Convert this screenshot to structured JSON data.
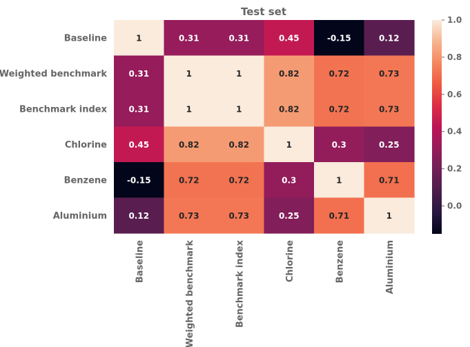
{
  "chart_data": {
    "type": "heatmap",
    "title": "Test set",
    "rows": [
      "Baseline",
      "Weighted benchmark",
      "Benchmark index",
      "Chlorine",
      "Benzene",
      "Aluminium"
    ],
    "columns": [
      "Baseline",
      "Weighted benchmark",
      "Benchmark index",
      "Chlorine",
      "Benzene",
      "Aluminium"
    ],
    "values": [
      [
        1,
        0.31,
        0.31,
        0.45,
        -0.15,
        0.12
      ],
      [
        0.31,
        1,
        1,
        0.82,
        0.72,
        0.73
      ],
      [
        0.31,
        1,
        1,
        0.82,
        0.72,
        0.73
      ],
      [
        0.45,
        0.82,
        0.82,
        1,
        0.3,
        0.25
      ],
      [
        -0.15,
        0.72,
        0.72,
        0.3,
        1,
        0.71
      ],
      [
        0.12,
        0.73,
        0.73,
        0.25,
        0.71,
        1
      ]
    ],
    "annotations": [
      [
        "1",
        "0.31",
        "0.31",
        "0.45",
        "-0.15",
        "0.12"
      ],
      [
        "0.31",
        "1",
        "1",
        "0.82",
        "0.72",
        "0.73"
      ],
      [
        "0.31",
        "1",
        "1",
        "0.82",
        "0.72",
        "0.73"
      ],
      [
        "0.45",
        "0.82",
        "0.82",
        "1",
        "0.3",
        "0.25"
      ],
      [
        "-0.15",
        "0.72",
        "0.72",
        "0.3",
        "1",
        "0.71"
      ],
      [
        "0.12",
        "0.73",
        "0.73",
        "0.25",
        "0.71",
        "1"
      ]
    ],
    "colormap": "rocket",
    "vmin": -0.15,
    "vmax": 1.0,
    "colorbar": {
      "ticks": [
        0.0,
        0.2,
        0.4,
        0.6,
        0.8,
        1.0
      ],
      "tick_labels": [
        "0.0",
        "0.2",
        "0.4",
        "0.6",
        "0.8",
        "1.0"
      ]
    }
  }
}
